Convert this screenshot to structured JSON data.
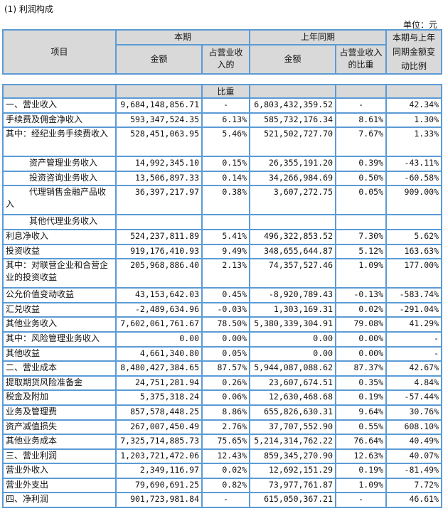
{
  "title": "(1) 利润构成",
  "unit": "单位：元",
  "header": {
    "item": "项目",
    "current": "本期",
    "prior": "上年同期",
    "change": "本期与上年同期金额变动比例",
    "amount": "金额",
    "ratio_current": "占营业收入的",
    "ratio_current_cont": "比重",
    "ratio_prior": "占营业收入的比重"
  },
  "rows": [
    {
      "name": "一、营业收入",
      "indent": 0,
      "cur": "9,684,148,856.71",
      "cur_pct": "-",
      "prior": "6,803,432,359.52",
      "prior_pct": "-",
      "chg": "42.34%"
    },
    {
      "name": "手续费及佣金净收入",
      "indent": 0,
      "cur": "593,347,524.35",
      "cur_pct": "6.13%",
      "prior": "585,732,176.34",
      "prior_pct": "8.61%",
      "chg": "1.30%"
    },
    {
      "name": "其中：经纪业务手续费收入",
      "indent": 0,
      "lines": 2,
      "cur": "528,451,063.95",
      "cur_pct": "5.46%",
      "prior": "521,502,727.70",
      "prior_pct": "7.67%",
      "chg": "1.33%"
    },
    {
      "name": "资产管理业务收入",
      "indent": 1,
      "cur": "14,992,345.10",
      "cur_pct": "0.15%",
      "prior": "26,355,191.20",
      "prior_pct": "0.39%",
      "chg": "-43.11%"
    },
    {
      "name": "投资咨询业务收入",
      "indent": 1,
      "cur": "13,506,897.33",
      "cur_pct": "0.14%",
      "prior": "34,266,984.69",
      "prior_pct": "0.50%",
      "chg": "-60.58%"
    },
    {
      "name": "代理销售金融产品收入",
      "indent": 2,
      "lines": 2,
      "cur": "36,397,217.97",
      "cur_pct": "0.38%",
      "prior": "3,607,272.75",
      "prior_pct": "0.05%",
      "chg": "909.00%"
    },
    {
      "name": "其他代理业务收入",
      "indent": 1,
      "cur": "",
      "cur_pct": "",
      "prior": "",
      "prior_pct": "",
      "chg": ""
    },
    {
      "name": "利息净收入",
      "indent": 0,
      "cur": "524,237,811.89",
      "cur_pct": "5.41%",
      "prior": "496,322,853.52",
      "prior_pct": "7.30%",
      "chg": "5.62%"
    },
    {
      "name": "投资收益",
      "indent": 0,
      "cur": "919,176,410.93",
      "cur_pct": "9.49%",
      "prior": "348,655,644.87",
      "prior_pct": "5.12%",
      "chg": "163.63%"
    },
    {
      "name": "其中：对联营企业和合营企业的投资收益",
      "indent": 0,
      "lines": 2,
      "cur": "205,968,886.40",
      "cur_pct": "2.13%",
      "prior": "74,357,527.46",
      "prior_pct": "1.09%",
      "chg": "177.00%"
    },
    {
      "name": "公允价值变动收益",
      "indent": 0,
      "cur": "43,153,642.03",
      "cur_pct": "0.45%",
      "prior": "-8,920,789.43",
      "prior_pct": "-0.13%",
      "chg": "-583.74%"
    },
    {
      "name": "汇兑收益",
      "indent": 0,
      "cur": "-2,489,634.96",
      "cur_pct": "-0.03%",
      "prior": "1,303,169.31",
      "prior_pct": "0.02%",
      "chg": "-291.04%"
    },
    {
      "name": "其他业务收入",
      "indent": 0,
      "cur": "7,602,061,761.67",
      "cur_pct": "78.50%",
      "prior": "5,380,339,304.91",
      "prior_pct": "79.08%",
      "chg": "41.29%"
    },
    {
      "name": "其中：风险管理业务收入",
      "indent": 0,
      "cur": "0.00",
      "cur_pct": "0.00%",
      "prior": "0.00",
      "prior_pct": "0.00%",
      "chg": "-"
    },
    {
      "name": "其他收益",
      "indent": 0,
      "cur": "4,661,340.80",
      "cur_pct": "0.05%",
      "prior": "0.00",
      "prior_pct": "0.00%",
      "chg": "-"
    },
    {
      "name": "二、营业成本",
      "indent": 0,
      "cur": "8,480,427,384.65",
      "cur_pct": "87.57%",
      "prior": "5,944,087,088.62",
      "prior_pct": "87.37%",
      "chg": "42.67%"
    },
    {
      "name": "提取期货风险准备金",
      "indent": 0,
      "cur": "24,751,281.94",
      "cur_pct": "0.26%",
      "prior": "23,607,674.51",
      "prior_pct": "0.35%",
      "chg": "4.84%"
    },
    {
      "name": "税金及附加",
      "indent": 0,
      "cur": "5,375,318.24",
      "cur_pct": "0.06%",
      "prior": "12,630,468.68",
      "prior_pct": "0.19%",
      "chg": "-57.44%"
    },
    {
      "name": "业务及管理费",
      "indent": 0,
      "cur": "857,578,448.25",
      "cur_pct": "8.86%",
      "prior": "655,826,630.31",
      "prior_pct": "9.64%",
      "chg": "30.76%"
    },
    {
      "name": "资产减值损失",
      "indent": 0,
      "cur": "267,007,450.49",
      "cur_pct": "2.76%",
      "prior": "37,707,552.90",
      "prior_pct": "0.55%",
      "chg": "608.10%"
    },
    {
      "name": "其他业务成本",
      "indent": 0,
      "cur": "7,325,714,885.73",
      "cur_pct": "75.65%",
      "prior": "5,214,314,762.22",
      "prior_pct": "76.64%",
      "chg": "40.49%"
    },
    {
      "name": "三、营业利润",
      "indent": 0,
      "cur": "1,203,721,472.06",
      "cur_pct": "12.43%",
      "prior": "859,345,270.90",
      "prior_pct": "12.63%",
      "chg": "40.07%"
    },
    {
      "name": "营业外收入",
      "indent": 0,
      "cur": "2,349,116.97",
      "cur_pct": "0.02%",
      "prior": "12,692,151.29",
      "prior_pct": "0.19%",
      "chg": "-81.49%"
    },
    {
      "name": "营业外支出",
      "indent": 0,
      "cur": "79,690,691.25",
      "cur_pct": "0.82%",
      "prior": "73,977,761.87",
      "prior_pct": "1.09%",
      "chg": "7.72%"
    },
    {
      "name": "四、净利润",
      "indent": 0,
      "cur": "901,723,981.84",
      "cur_pct": "-",
      "prior": "615,050,367.21",
      "prior_pct": "-",
      "chg": "46.61%"
    }
  ],
  "colors": {
    "border": "#5b9bd5",
    "header_bg": "#d9d9d9"
  }
}
